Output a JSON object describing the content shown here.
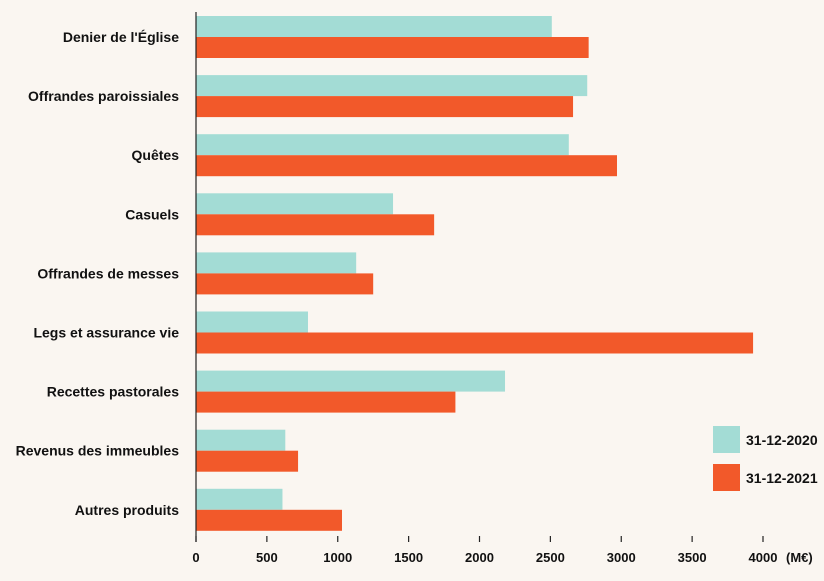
{
  "chart_data": {
    "type": "bar",
    "orientation": "horizontal",
    "categories": [
      "Denier de l'Église",
      "Offrandes paroissiales",
      "Quêtes",
      "Casuels",
      "Offrandes de messes",
      "Legs et assurance vie",
      "Recettes pastorales",
      "Revenus des immeubles",
      "Autres produits"
    ],
    "series": [
      {
        "name": "31-12-2020",
        "color": "#a3dcd5",
        "values": [
          2510,
          2760,
          2630,
          1390,
          1130,
          790,
          2180,
          630,
          610
        ]
      },
      {
        "name": "31-12-2021",
        "color": "#f2592a",
        "values": [
          2770,
          2660,
          2970,
          1680,
          1250,
          3930,
          1830,
          720,
          1030
        ]
      }
    ],
    "xticks": [
      0,
      500,
      1000,
      1500,
      2000,
      2500,
      3000,
      3500,
      4000
    ],
    "xlim": [
      0,
      4000
    ],
    "unit": "(M€)",
    "title": "",
    "xlabel": "",
    "ylabel": "",
    "grid": false,
    "legend_position": "bottom-right"
  }
}
